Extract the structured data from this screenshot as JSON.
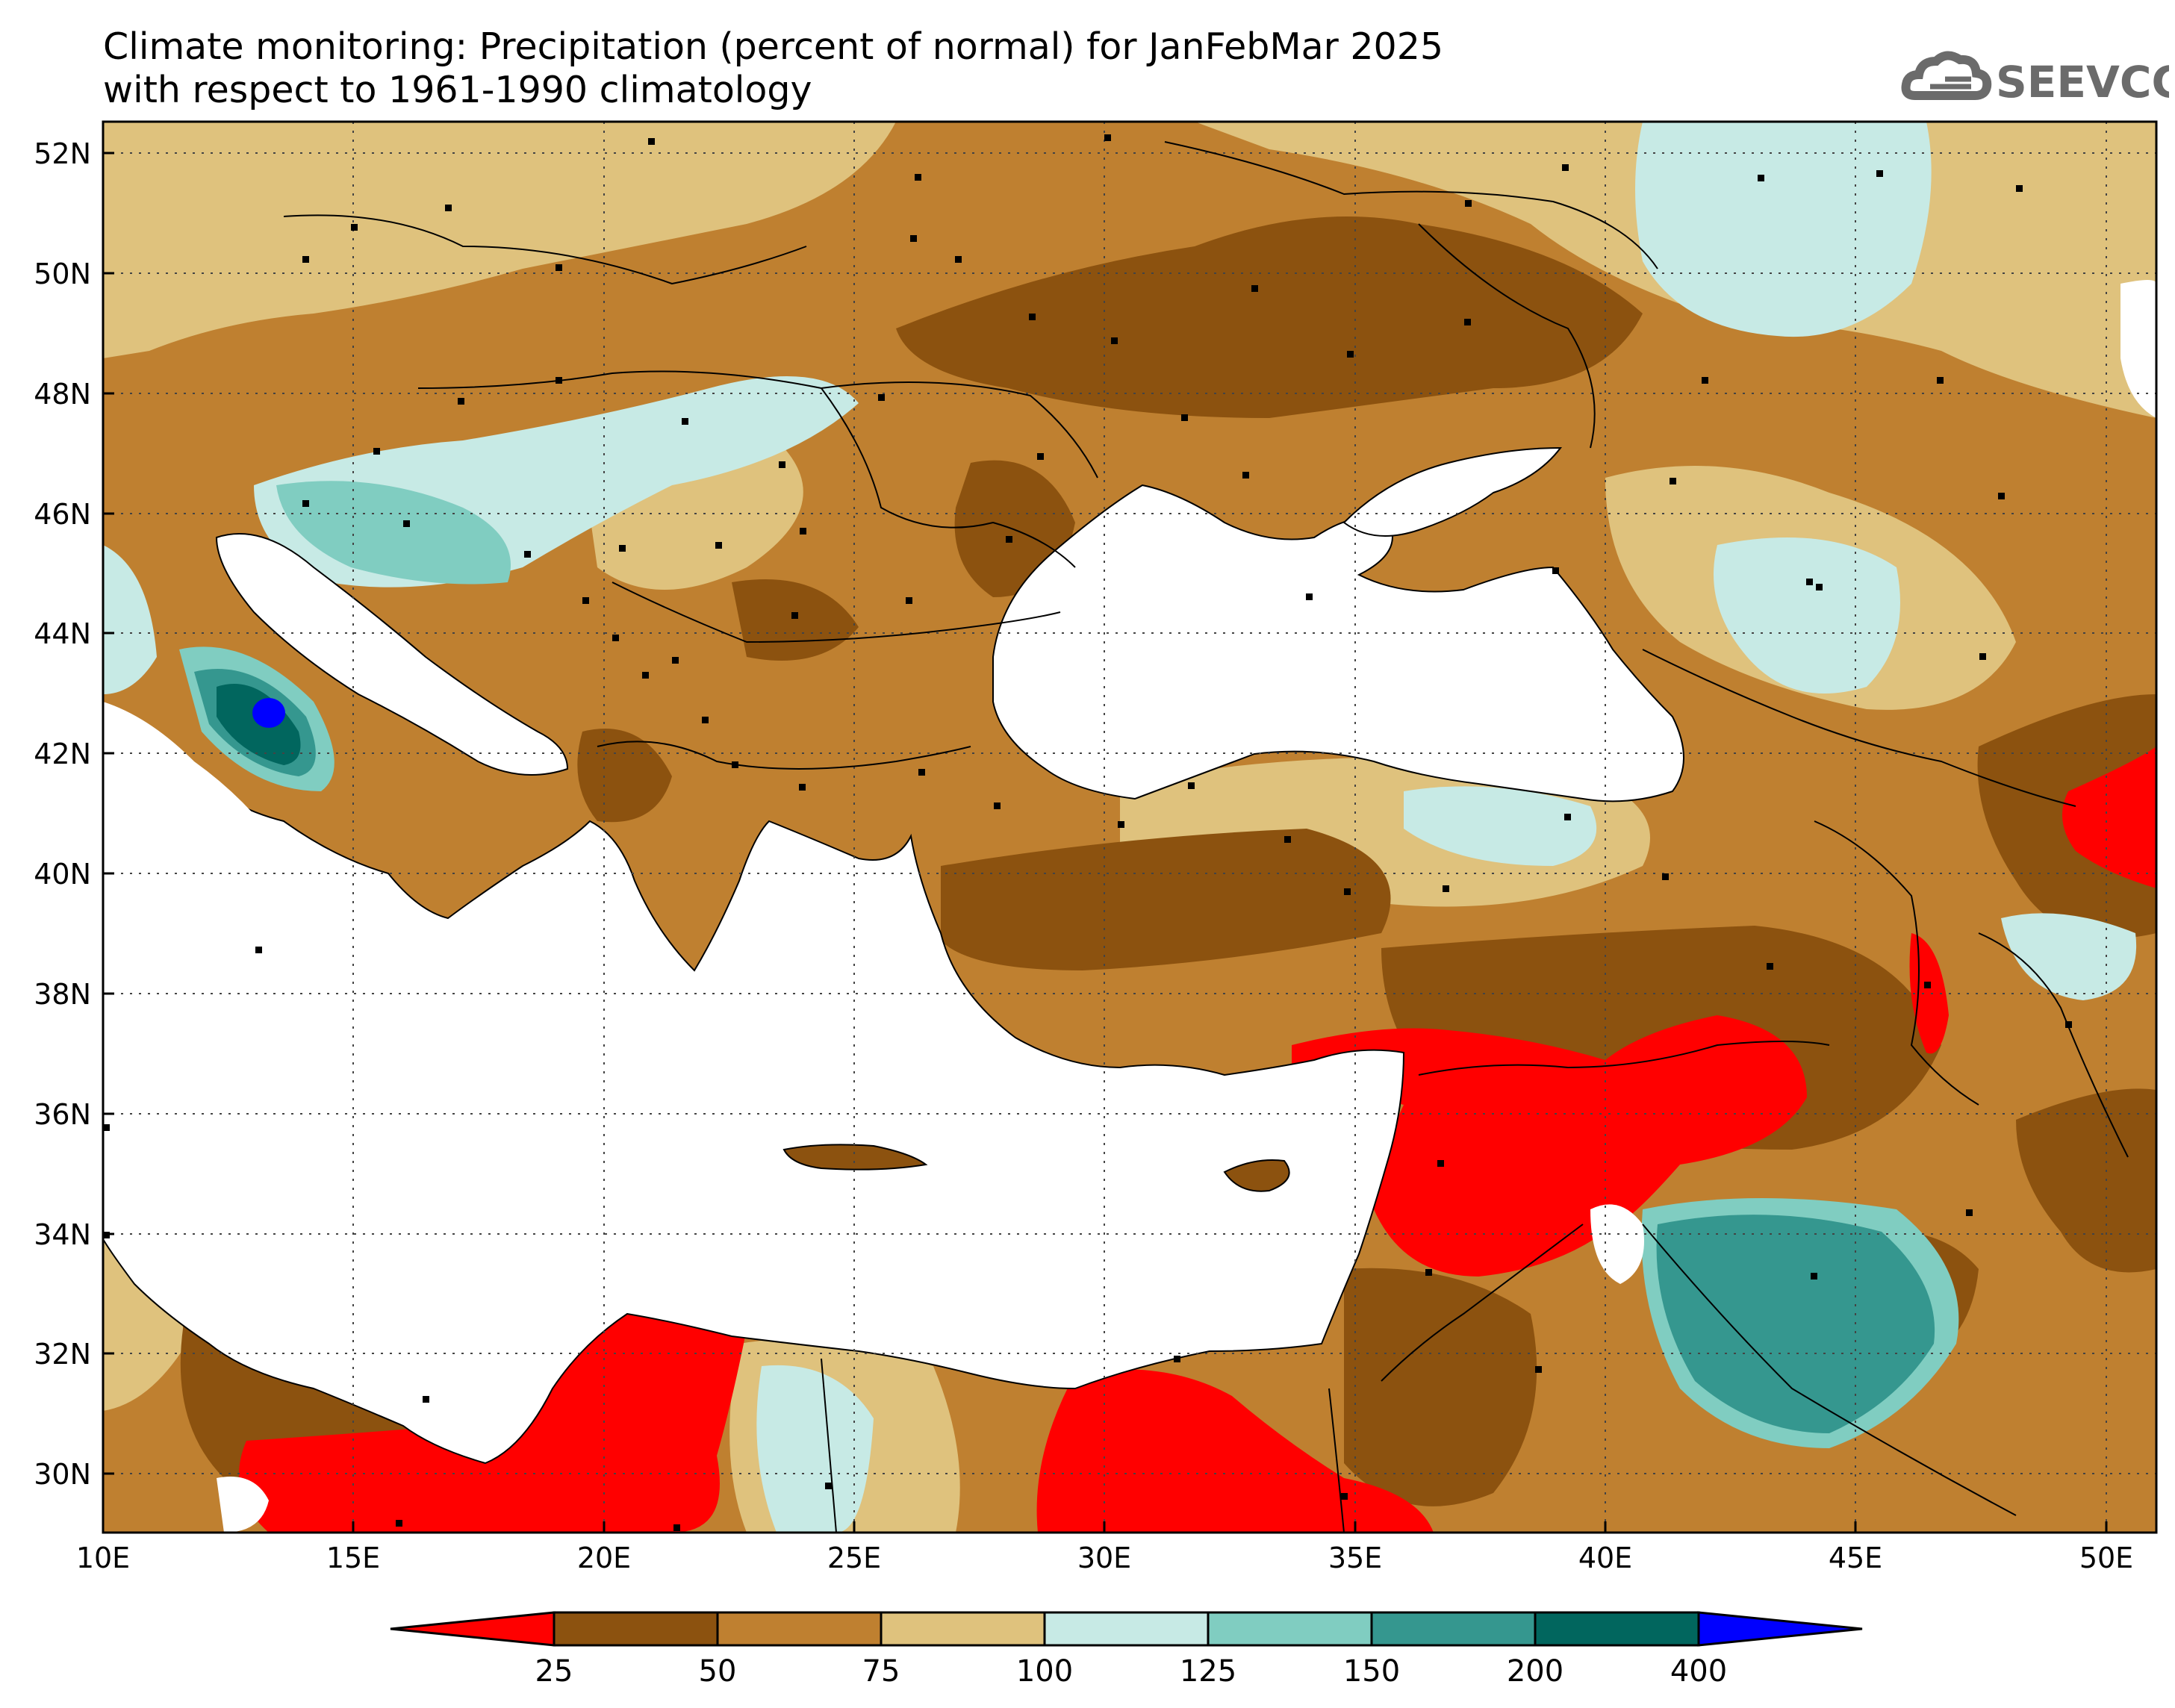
{
  "title": {
    "line1": "Climate monitoring: Precipitation (percent of normal) for JanFebMar 2025",
    "line2": "with respect to 1961-1990 climatology"
  },
  "logo": {
    "text": "SEEVCCC"
  },
  "map": {
    "lon_range": [
      10,
      51
    ],
    "lat_range": [
      29,
      52.5
    ],
    "lon_ticks": [
      "10E",
      "15E",
      "20E",
      "25E",
      "30E",
      "35E",
      "40E",
      "45E",
      "50E"
    ],
    "lat_ticks": [
      "52N",
      "50N",
      "48N",
      "46N",
      "44N",
      "42N",
      "40N",
      "38N",
      "36N",
      "34N",
      "32N",
      "30N"
    ],
    "grid": "dotted"
  },
  "legend": {
    "thresholds": [
      "25",
      "50",
      "75",
      "100",
      "125",
      "150",
      "200",
      "400"
    ],
    "colors": [
      "#ff0000",
      "#8c520f",
      "#bf8030",
      "#dfc27d",
      "#c7eae5",
      "#80cdc1",
      "#35978f",
      "#01665e",
      "#0000ff"
    ]
  }
}
